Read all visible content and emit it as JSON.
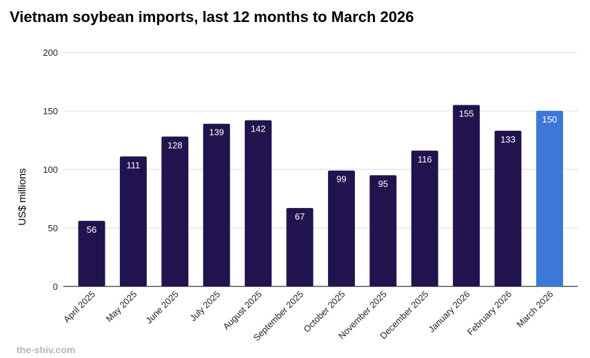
{
  "chart_data": {
    "type": "bar",
    "title": "Vietnam soybean imports, last 12 months to March 2026",
    "xlabel": "",
    "ylabel": "US$ millions",
    "ylim": [
      0,
      200
    ],
    "yticks": [
      0,
      50,
      100,
      150,
      200
    ],
    "grid": true,
    "categories": [
      "April 2025",
      "May 2025",
      "June 2025",
      "July 2025",
      "August 2025",
      "September 2025",
      "October 2025",
      "November 2025",
      "December 2025",
      "January 2026",
      "February 2026",
      "March 2026"
    ],
    "values": [
      56,
      111,
      128,
      139,
      142,
      67,
      99,
      95,
      116,
      155,
      133,
      150
    ],
    "colors": {
      "default": "#21134d",
      "highlight": "#3c78d8"
    },
    "highlight_index": 11
  },
  "watermark": "the-shiv.com"
}
